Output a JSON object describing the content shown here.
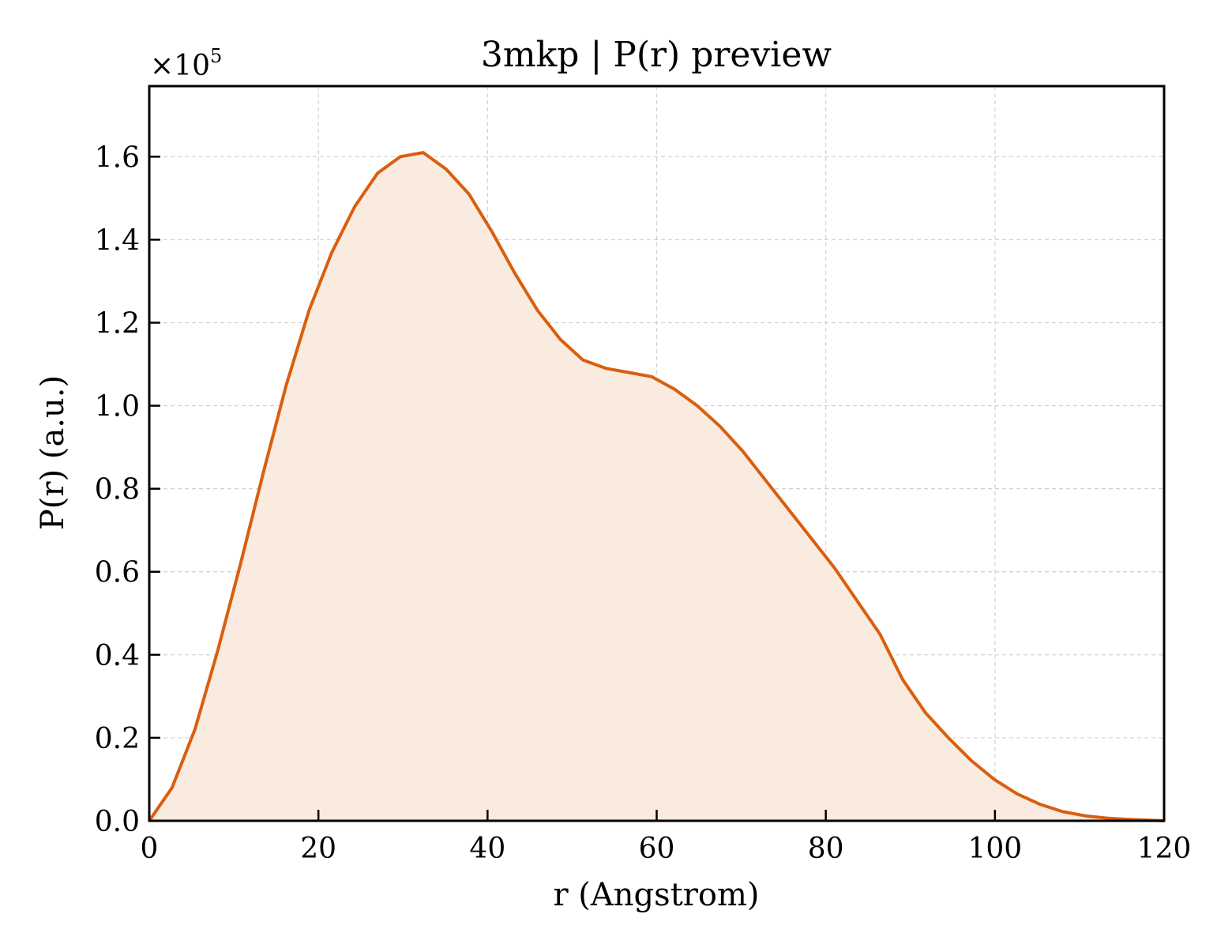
{
  "chart_data": {
    "type": "area",
    "title": "3mkp | P(r) preview",
    "xlabel": "r (Angstrom)",
    "ylabel": "P(r) (a.u.)",
    "y_multiplier_label": "×10",
    "y_multiplier_exponent": "5",
    "xlim": [
      0,
      120
    ],
    "ylim": [
      0,
      1.77
    ],
    "x_ticks": [
      0,
      20,
      40,
      60,
      80,
      100,
      120
    ],
    "x_tick_labels": [
      "0",
      "20",
      "40",
      "60",
      "80",
      "100",
      "120"
    ],
    "y_ticks": [
      0,
      0.2,
      0.4,
      0.6,
      0.8,
      1.0,
      1.2,
      1.4,
      1.6
    ],
    "y_tick_labels": [
      "0.0",
      "0.2",
      "0.4",
      "0.6",
      "0.8",
      "1.0",
      "1.2",
      "1.4",
      "1.6"
    ],
    "grid": true,
    "series": [
      {
        "color": "#d95f0e",
        "fill_color": "#f9ebe0",
        "x": [
          0,
          2.7,
          5.4,
          8.1,
          10.8,
          13.5,
          16.2,
          18.9,
          21.6,
          24.3,
          27.0,
          29.7,
          32.4,
          35.1,
          37.8,
          40.5,
          43.2,
          45.9,
          48.6,
          51.3,
          54.0,
          56.7,
          59.4,
          62.1,
          64.8,
          67.5,
          70.2,
          72.9,
          75.6,
          78.3,
          81.0,
          83.7,
          86.4,
          89.1,
          91.8,
          94.5,
          97.2,
          99.9,
          102.6,
          105.3,
          108.0,
          110.7,
          113.4,
          116.1,
          118.8,
          120.0
        ],
        "y": [
          0.0,
          0.08,
          0.22,
          0.41,
          0.62,
          0.84,
          1.05,
          1.23,
          1.37,
          1.48,
          1.56,
          1.6,
          1.61,
          1.57,
          1.51,
          1.42,
          1.32,
          1.23,
          1.16,
          1.11,
          1.09,
          1.08,
          1.07,
          1.04,
          1.0,
          0.95,
          0.89,
          0.82,
          0.75,
          0.68,
          0.61,
          0.53,
          0.45,
          0.34,
          0.26,
          0.2,
          0.145,
          0.1,
          0.065,
          0.04,
          0.022,
          0.012,
          0.006,
          0.003,
          0.001,
          0.0
        ]
      }
    ]
  }
}
